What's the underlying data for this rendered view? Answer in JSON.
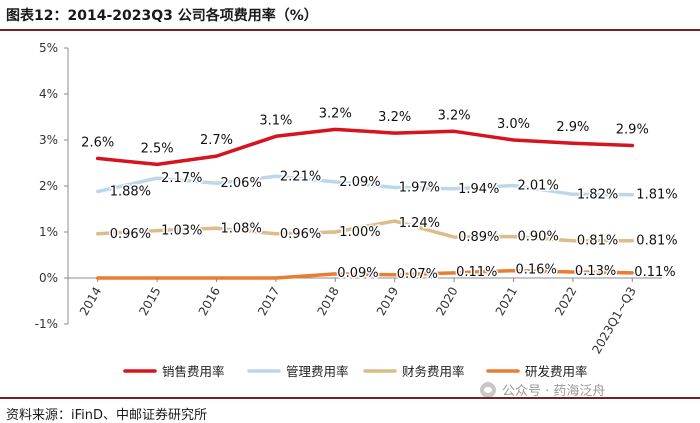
{
  "figure": {
    "title": "图表12：2014-2023Q3 公司各项费用率（%）",
    "source": "资料来源：iFinD、中邮证券研究所",
    "watermark": "公众号 · 药海泛舟"
  },
  "chart_data": {
    "type": "line",
    "title": "2014-2023Q3 公司各项费用率（%）",
    "categories": [
      "2014",
      "2015",
      "2016",
      "2017",
      "2018",
      "2019",
      "2020",
      "2021",
      "2022",
      "2023Q1~Q3"
    ],
    "ylim": [
      -1,
      5
    ],
    "yticks": [
      -1,
      0,
      1,
      2,
      3,
      4,
      5
    ],
    "ytick_labels": [
      "-1%",
      "0%",
      "1%",
      "2%",
      "3%",
      "4%",
      "5%"
    ],
    "xlabel": "",
    "ylabel": "",
    "legend_position": "bottom",
    "series": [
      {
        "name": "销售费用率",
        "color": "#d7141d",
        "values": [
          2.6,
          2.47,
          2.65,
          3.08,
          3.23,
          3.15,
          3.19,
          3.0,
          2.93,
          2.88
        ],
        "labels": [
          "2.6%",
          "2.5%",
          "2.7%",
          "3.1%",
          "3.2%",
          "3.2%",
          "3.2%",
          "3.0%",
          "2.9%",
          "2.9%"
        ]
      },
      {
        "name": "管理费用率",
        "color": "#bcd7ec",
        "values": [
          1.88,
          2.17,
          2.06,
          2.21,
          2.09,
          1.97,
          1.94,
          2.01,
          1.82,
          1.81
        ],
        "labels": [
          "1.88%",
          "2.17%",
          "2.06%",
          "2.21%",
          "2.09%",
          "1.97%",
          "1.94%",
          "2.01%",
          "1.82%",
          "1.81%"
        ]
      },
      {
        "name": "财务费用率",
        "color": "#dcbc8a",
        "values": [
          0.96,
          1.03,
          1.08,
          0.96,
          1.0,
          1.24,
          0.89,
          0.9,
          0.81,
          0.81
        ],
        "labels": [
          "0.96%",
          "1.03%",
          "1.08%",
          "0.96%",
          "1.00%",
          "1.24%",
          "0.89%",
          "0.90%",
          "0.81%",
          "0.81%"
        ]
      },
      {
        "name": "研发费用率",
        "color": "#e97d31",
        "values": [
          0.0,
          0.0,
          0.0,
          0.0,
          0.09,
          0.07,
          0.11,
          0.16,
          0.13,
          0.11
        ],
        "labels": [
          null,
          null,
          null,
          null,
          "0.09%",
          "0.07%",
          "0.11%",
          "0.16%",
          "0.13%",
          "0.11%"
        ]
      }
    ]
  }
}
